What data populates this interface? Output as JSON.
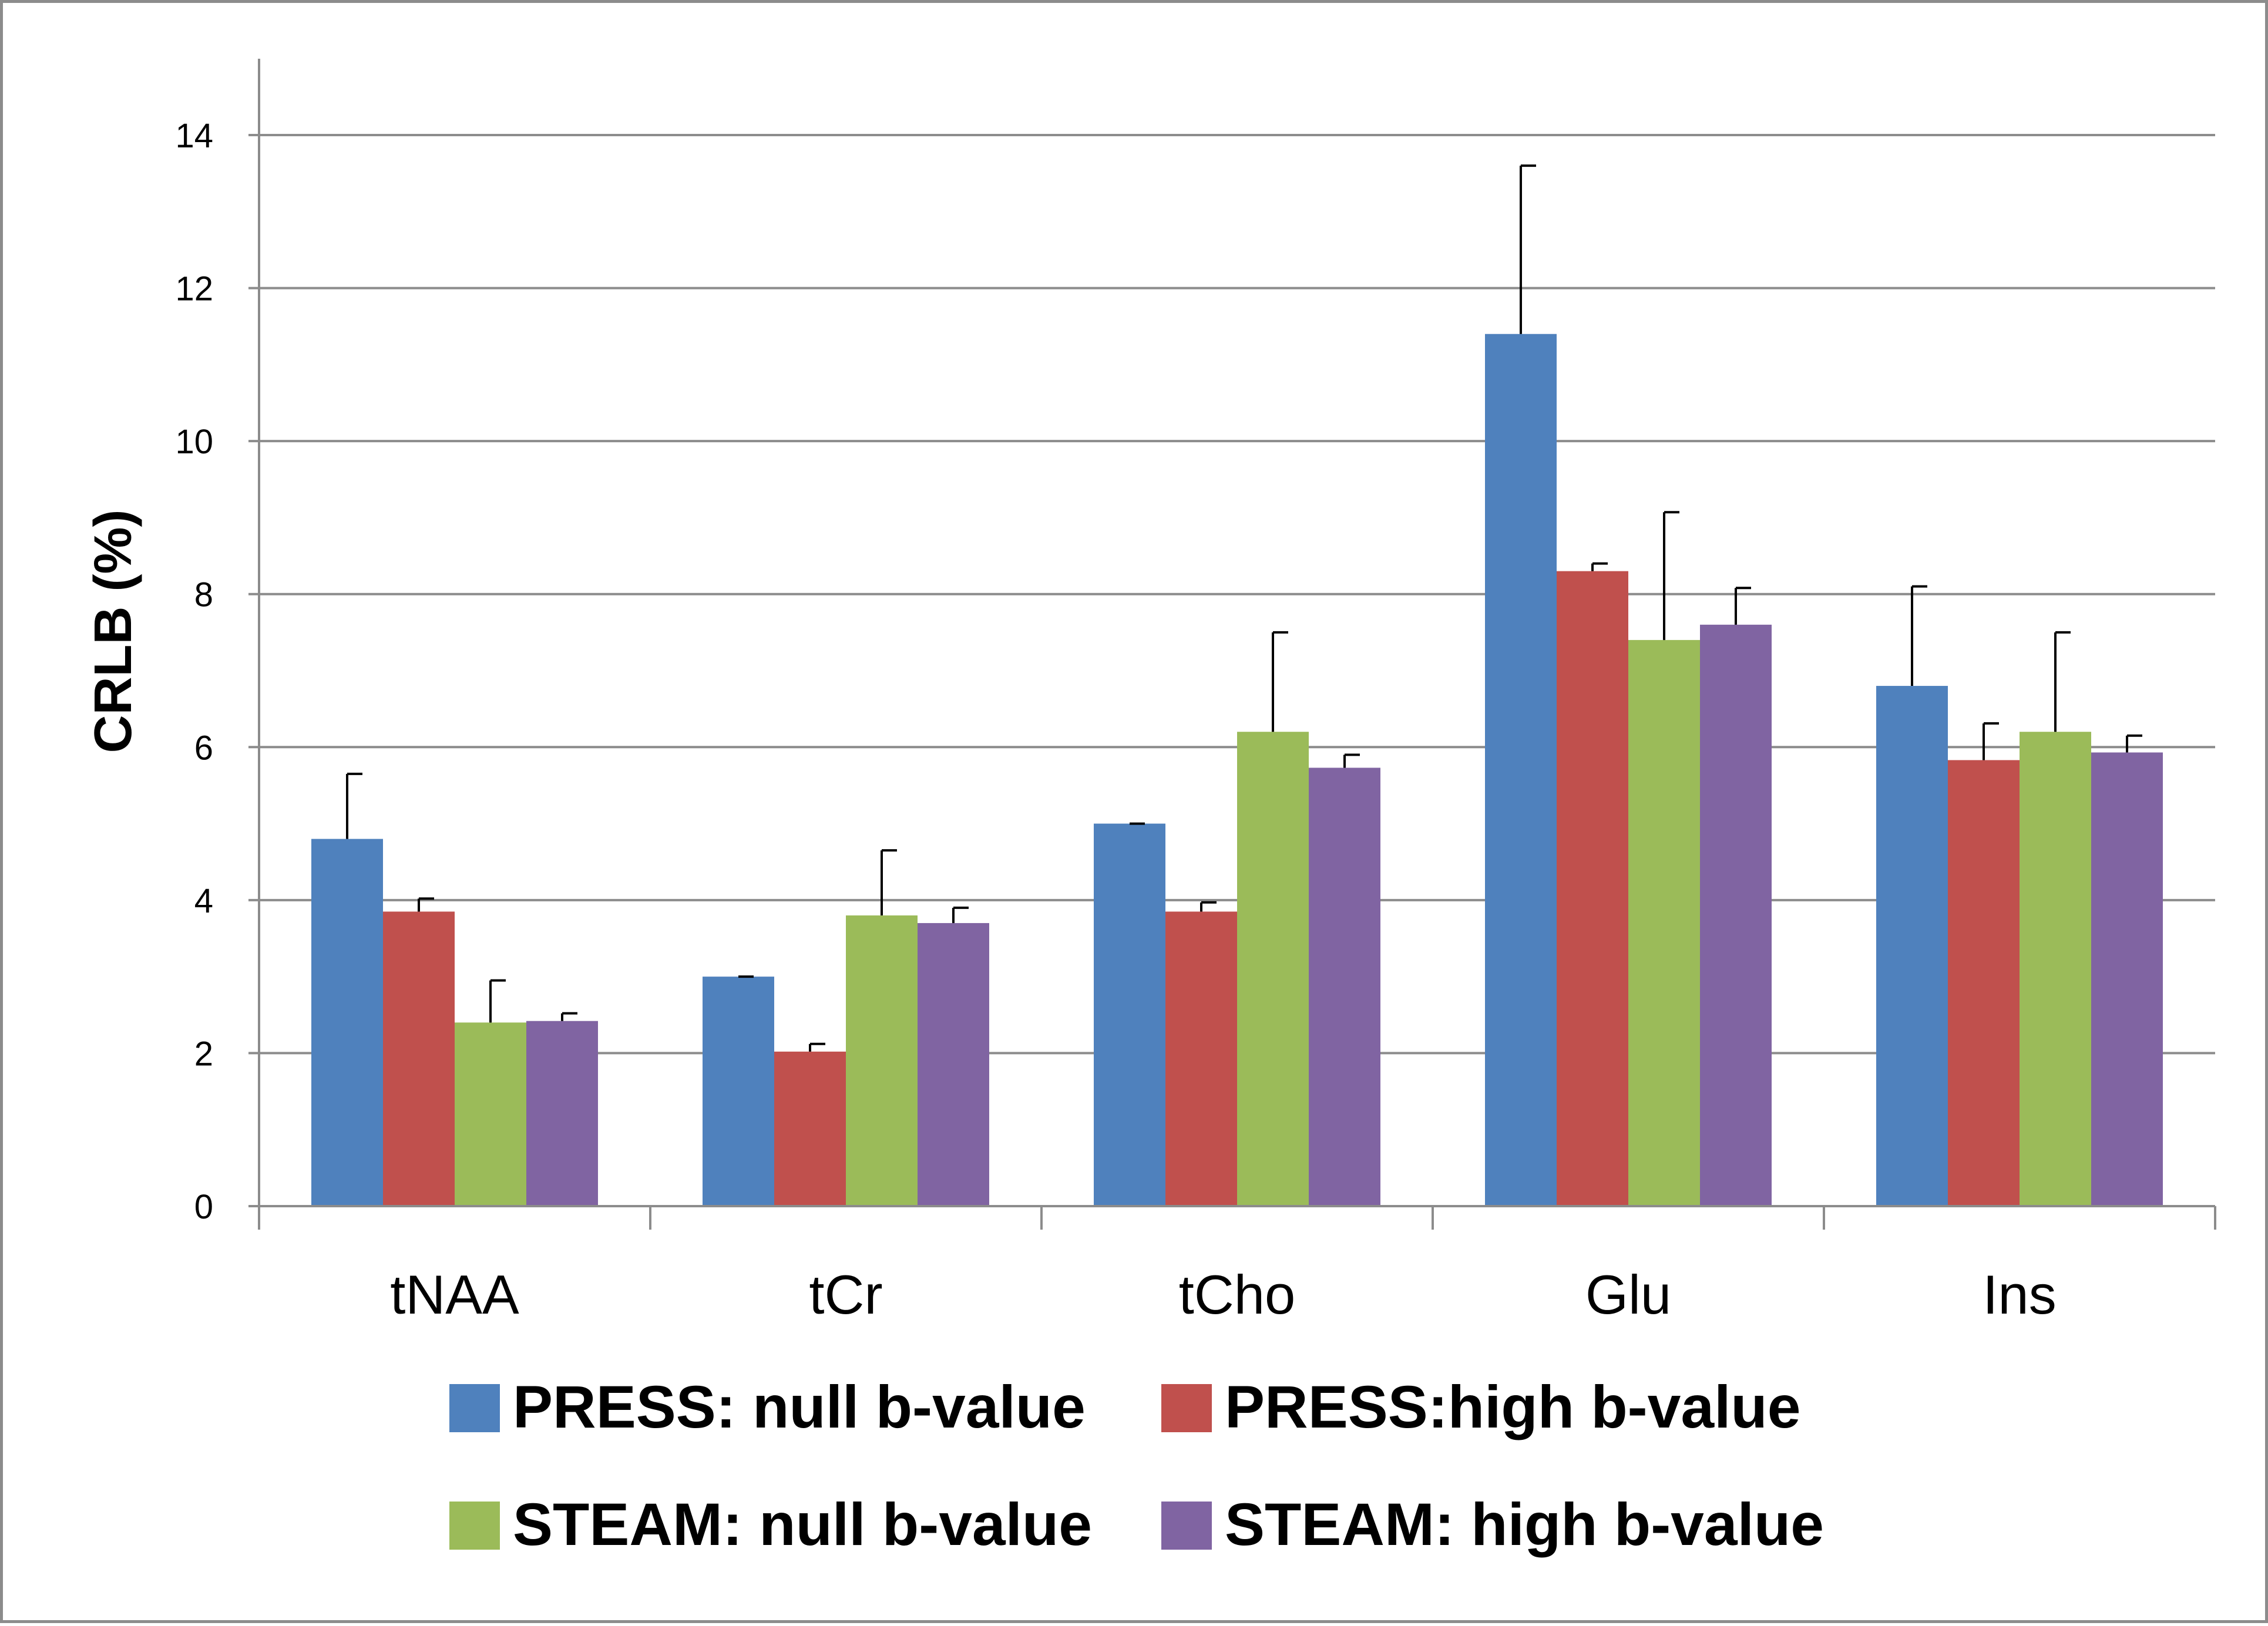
{
  "chart_data": {
    "type": "bar",
    "ylabel": "CRLB (%)",
    "xlabel": "",
    "ylim": [
      0,
      14
    ],
    "yticks": [
      0,
      2,
      4,
      6,
      8,
      10,
      12,
      14
    ],
    "ytick_labels": [
      "0",
      "2",
      "4",
      "6",
      "8",
      "10",
      "12",
      "14"
    ],
    "grid": true,
    "legend_position": "bottom",
    "categories": [
      "tNAA",
      "tCr",
      "tCho",
      "Glu",
      "Ins"
    ],
    "series": [
      {
        "name": "PRESS: null b-value",
        "color": "#4f81bd",
        "values": [
          4.8,
          3.0,
          5.0,
          11.4,
          6.8
        ],
        "errors": [
          0.85,
          0.0,
          0.0,
          2.2,
          1.3
        ]
      },
      {
        "name": "PRESS:high b-value",
        "color": "#c0504d",
        "values": [
          3.85,
          2.02,
          3.85,
          8.3,
          5.83
        ],
        "errors": [
          0.17,
          0.1,
          0.12,
          0.1,
          0.48
        ]
      },
      {
        "name": "STEAM: null b-value",
        "color": "#9bbb59",
        "values": [
          2.4,
          3.8,
          6.2,
          7.4,
          6.2
        ],
        "errors": [
          0.55,
          0.85,
          1.3,
          1.67,
          1.3
        ]
      },
      {
        "name": "STEAM: high b-value",
        "color": "#8064a2",
        "values": [
          2.42,
          3.7,
          5.73,
          7.6,
          5.93
        ],
        "errors": [
          0.1,
          0.2,
          0.17,
          0.48,
          0.22
        ]
      }
    ]
  }
}
